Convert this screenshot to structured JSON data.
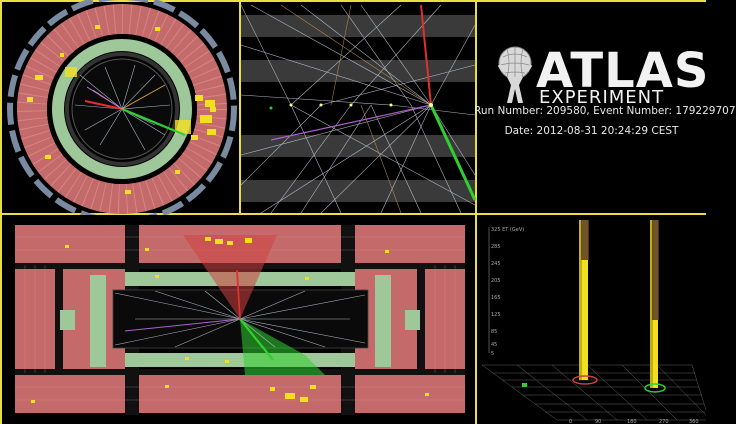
{
  "logo": {
    "word": "ATLAS",
    "subword": "EXPERIMENT"
  },
  "event": {
    "run_line": "Run Number: 209580, Event Number: 179229707",
    "date_line": "Date: 2012-08-31 20:24:29 CEST"
  },
  "lego_plot": {
    "y_axis_title": "325 ET (GeV)",
    "y_ticks": [
      "285",
      "245",
      "205",
      "165",
      "125",
      "85",
      "45",
      "5"
    ],
    "x_ticks": [
      "0",
      "90",
      "180",
      "270",
      "360"
    ]
  },
  "colors": {
    "frame": "#e8e040",
    "calorimeter": "#c46a6a",
    "inner_calorimeter": "#9fc89a",
    "energy_deposit": "#f2e020",
    "electron_track": "#2fd02f",
    "muon_track": "#e03030"
  }
}
